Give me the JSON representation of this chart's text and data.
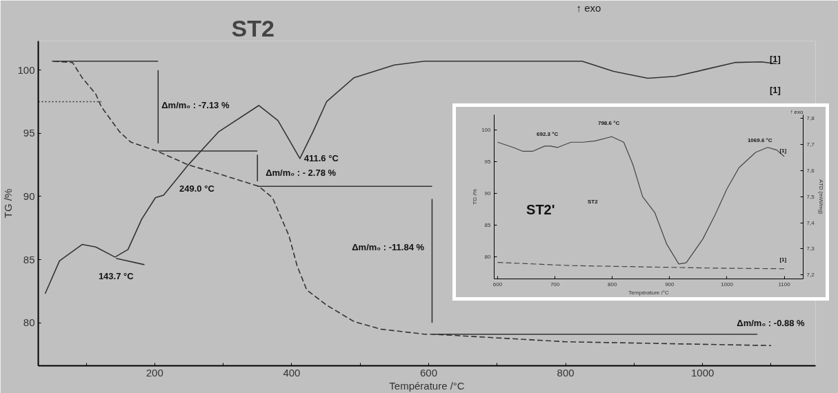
{
  "chart_data": [
    {
      "type": "line",
      "title": "ST2",
      "xlabel": "Température /°C",
      "ylabel": "TG /%",
      "xlim": [
        30,
        1165
      ],
      "ylim": [
        76.6,
        102.3
      ],
      "xticks": [
        {
          "value": 100,
          "label": null
        },
        200,
        {
          "value": 300,
          "label": null
        },
        400,
        {
          "value": 500,
          "label": null
        },
        600,
        {
          "value": 700,
          "label": null
        },
        800,
        {
          "value": 900,
          "label": null
        },
        1000,
        {
          "value": 1100,
          "label": null
        }
      ],
      "yticks": [
        80,
        85,
        90,
        95,
        100
      ],
      "grid": false,
      "series": [
        {
          "color": "#333333",
          "line_style": "dashed",
          "x": [
            52,
            80,
            94,
            114,
            122,
            149,
            165,
            203,
            249,
            293,
            352,
            372,
            396,
            408,
            422,
            451,
            491,
            530,
            594,
            605,
            800,
            1000,
            1100
          ],
          "values": [
            100.7,
            100.6,
            99.4,
            98.1,
            97.1,
            95.1,
            94.3,
            93.6,
            92.5,
            91.8,
            90.8,
            89.9,
            86.9,
            84.5,
            82.6,
            81.4,
            80.1,
            79.5,
            79.1,
            79.1,
            78.5,
            78.3,
            78.2
          ]
        },
        {
          "color": "#333333",
          "line_style": "solid",
          "x": [
            40,
            61,
            94,
            114,
            142,
            161,
            181,
            201,
            213,
            249,
            293,
            352,
            380,
            412,
            431,
            451,
            491,
            550,
            594,
            700,
            824,
            870,
            920,
            960,
            1000,
            1047,
            1086,
            1108
          ],
          "values": [
            82.3,
            84.9,
            86.2,
            86.0,
            85.2,
            85.8,
            88.2,
            89.9,
            90.1,
            92.5,
            95.1,
            97.2,
            96.0,
            93.0,
            95.1,
            97.5,
            99.4,
            100.4,
            100.7,
            100.7,
            100.7,
            99.9,
            99.35,
            99.5,
            100.0,
            100.6,
            100.65,
            100.5
          ]
        },
        {
          "color": "#333333",
          "line_style": "dotted",
          "x": [
            30,
            122
          ],
          "values": [
            97.5,
            97.5
          ]
        },
        {
          "color": "#333333",
          "line_style": "solid",
          "x": [
            50,
            205
          ],
          "values": [
            100.7,
            100.7
          ]
        },
        {
          "color": "#333333",
          "line_style": "solid",
          "x": [
            205,
            350
          ],
          "values": [
            93.6,
            93.6
          ]
        },
        {
          "color": "#333333",
          "line_style": "solid",
          "x": [
            350,
            605
          ],
          "values": [
            90.8,
            90.8
          ]
        },
        {
          "color": "#333333",
          "line_style": "solid",
          "x": [
            605,
            1080
          ],
          "values": [
            79.1,
            79.1
          ]
        },
        {
          "color": "#333333",
          "line_style": "solid",
          "x": [
            205,
            205
          ],
          "values": [
            100.0,
            94.2
          ]
        },
        {
          "color": "#333333",
          "line_style": "solid",
          "x": [
            350,
            350
          ],
          "values": [
            93.3,
            91.2
          ]
        },
        {
          "color": "#333333",
          "line_style": "solid",
          "x": [
            605,
            605
          ],
          "values": [
            89.8,
            80.0
          ]
        },
        {
          "color": "#333333",
          "line_style": "solid",
          "x": [
            143.7,
            185
          ],
          "values": [
            85.1,
            84.6
          ]
        }
      ],
      "annotations": [
        "↑ exo",
        "Δm/m₀ : -7.13 %",
        "Δm/m₀ : - 2.78 %",
        "Δm/m₀ : -11.84 %",
        "Δm/m₀ :  -0.88 %",
        "411.6 °C",
        "249.0 °C",
        "143.7 °C",
        "[1]",
        "[1]"
      ]
    },
    {
      "type": "line",
      "xlabel": "Température /°C",
      "ylabel": "TG /%",
      "y2label": "ATD (mW/mg)",
      "xlim": [
        594,
        1133
      ],
      "ylim": [
        76.5,
        102.4
      ],
      "y2lim": [
        7.185,
        7.814
      ],
      "xticks": [
        600,
        700,
        800,
        900,
        1000,
        1100
      ],
      "yticks": [
        80,
        85,
        90,
        95,
        100
      ],
      "y2ticks": [
        {
          "value": 7.2,
          "label": "7,2"
        },
        {
          "value": 7.3,
          "label": "7,3"
        },
        {
          "value": 7.4,
          "label": "7,4"
        },
        {
          "value": 7.5,
          "label": "7,5"
        },
        {
          "value": 7.6,
          "label": "7,6"
        },
        {
          "value": 7.7,
          "label": "7,7"
        },
        {
          "value": 7.8,
          "label": "7,8"
        }
      ],
      "grid": false,
      "series": [
        {
          "color": "#444444",
          "line_style": "solid",
          "axis": "y2",
          "x": [
            600,
            627,
            644,
            661,
            682,
            692,
            705,
            728,
            749,
            770,
            799,
            820,
            836,
            853,
            874,
            895,
            916,
            929,
            958,
            979,
            1000,
            1021,
            1050,
            1071,
            1087,
            1100
          ],
          "values": [
            7.709,
            7.689,
            7.674,
            7.674,
            7.694,
            7.694,
            7.689,
            7.709,
            7.709,
            7.714,
            7.73,
            7.709,
            7.623,
            7.5,
            7.44,
            7.318,
            7.242,
            7.247,
            7.338,
            7.429,
            7.53,
            7.611,
            7.67,
            7.689,
            7.679,
            7.654
          ]
        },
        {
          "color": "#444444",
          "line_style": "dashed",
          "x": [
            600,
            728,
            853,
            979,
            1100
          ],
          "values": [
            79.1,
            78.6,
            78.4,
            78.2,
            78.1
          ]
        }
      ],
      "annotations": [
        "↑ exo",
        "692.3 °C",
        "798.6 °C",
        "1069.6 °C",
        "ST2'",
        "ST2",
        "[1]",
        "[1]"
      ]
    }
  ]
}
